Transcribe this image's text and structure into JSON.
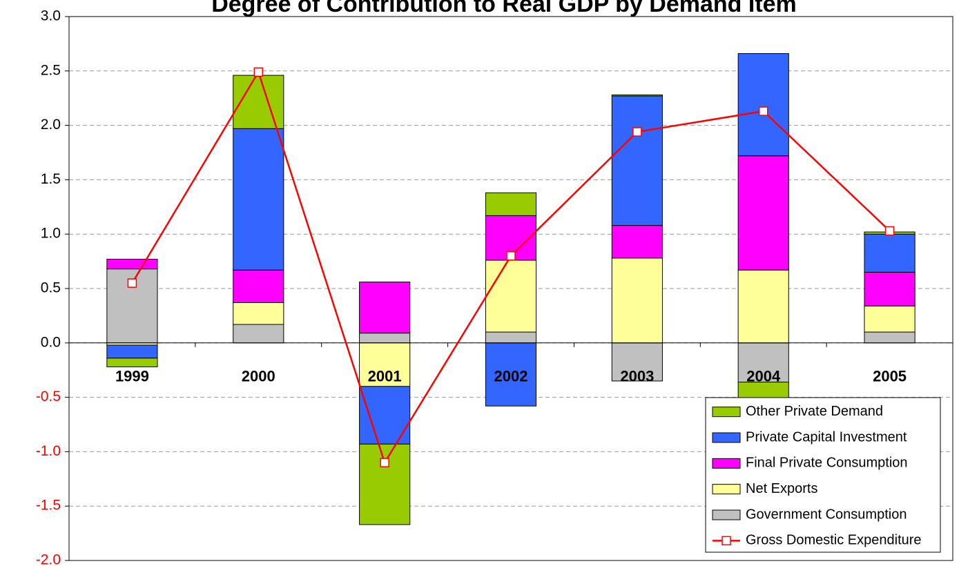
{
  "chart_data": {
    "type": "stacked_bar_line",
    "title": "Degree of Contribution to Real GDP by Demand Item",
    "categories": [
      "1999",
      "2000",
      "2001",
      "2002",
      "2003",
      "2004",
      "2005"
    ],
    "series": [
      {
        "name": "Government Consumption",
        "color": "#c0c0c0",
        "values": [
          0.68,
          0.17,
          0.09,
          0.1,
          -0.35,
          -0.36,
          0.1
        ]
      },
      {
        "name": "Net Exports",
        "color": "#ffff99",
        "values": [
          -0.02,
          0.2,
          -0.4,
          0.66,
          0.78,
          0.67,
          0.24
        ]
      },
      {
        "name": "Final Private Consumption",
        "color": "#ff00ff",
        "values": [
          0.09,
          0.3,
          0.47,
          0.41,
          0.3,
          1.05,
          0.31
        ]
      },
      {
        "name": "Private Capital Investment",
        "color": "#3366ff",
        "values": [
          -0.12,
          1.3,
          -0.53,
          -0.58,
          1.19,
          0.94,
          0.35
        ]
      },
      {
        "name": "Other Private Demand",
        "color": "#99cc00",
        "values": [
          -0.08,
          0.49,
          -0.74,
          0.21,
          0.01,
          -0.17,
          0.02
        ]
      }
    ],
    "line": {
      "name": "Gross Domestic Expenditure",
      "color": "#ff0000",
      "values": [
        0.55,
        2.49,
        -1.1,
        0.8,
        1.94,
        2.13,
        1.03
      ]
    },
    "ylim": [
      -2.0,
      3.0
    ],
    "yticks": [
      {
        "value": 3.0,
        "label": "3.0"
      },
      {
        "value": 2.5,
        "label": "2.5"
      },
      {
        "value": 2.0,
        "label": "2.0"
      },
      {
        "value": 1.5,
        "label": "1.5"
      },
      {
        "value": 1.0,
        "label": "1.0"
      },
      {
        "value": 0.5,
        "label": "0.5"
      },
      {
        "value": 0,
        "label": "0.0"
      },
      {
        "value": -0.5,
        "label": "-0.5"
      },
      {
        "value": -1.0,
        "label": "-1.0"
      },
      {
        "value": -1.5,
        "label": "-1.5"
      },
      {
        "value": -2.0,
        "label": "-2.0"
      }
    ],
    "negative_tick_color": "#ff0000",
    "grid": true,
    "legend": "lower right"
  }
}
